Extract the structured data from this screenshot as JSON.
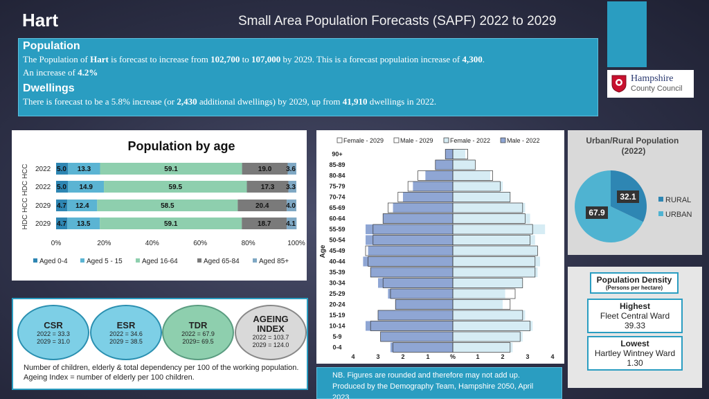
{
  "header": {
    "place": "Hart",
    "title": "Small Area Population Forecasts (SAPF) 2022 to 2029"
  },
  "summary": {
    "population_heading": "Population",
    "pop_t1": "The Population of ",
    "pop_place": "Hart",
    "pop_t2": " is forecast to increase from ",
    "pop_from": "102,700",
    "pop_t3": " to ",
    "pop_to": "107,000",
    "pop_t4": " by 2029. This is a forecast population increase of ",
    "pop_increase": "4,300",
    "pop_t5": ".",
    "pop_line2_a": "An increase of ",
    "pop_percent": "4.2%",
    "dwellings_heading": "Dwellings",
    "dw_t1": "There is forecast to be a 5.8% increase (or ",
    "dw_additional": "2,430",
    "dw_t2": " additional dwellings) by 2029, up from ",
    "dw_from": "41,910",
    "dw_t3": " dwellings in 2022."
  },
  "logo": {
    "line1": "Hampshire",
    "line2": "County Council"
  },
  "age_chart": {
    "title": "Population by age",
    "ylabel": "HDC HCC HDC HCC",
    "legend": [
      "Aged 0-4",
      "Aged 5 - 15",
      "Aged 16-64",
      "Aged 65-84",
      "Aged 85+"
    ],
    "colors": [
      "#2e86b3",
      "#5bb4d3",
      "#8ecfae",
      "#7a7a7a",
      "#7fa8c4"
    ],
    "xticks": [
      "0%",
      "20%",
      "40%",
      "60%",
      "80%",
      "100%"
    ],
    "rows": [
      {
        "label": "2022",
        "values": [
          5.0,
          13.3,
          59.1,
          19.0,
          3.6
        ]
      },
      {
        "label": "2022",
        "values": [
          5.0,
          14.9,
          59.5,
          17.3,
          3.3
        ]
      },
      {
        "label": "2029",
        "values": [
          4.7,
          12.4,
          58.5,
          20.4,
          4.0
        ]
      },
      {
        "label": "2029",
        "values": [
          4.7,
          13.5,
          59.1,
          18.7,
          4.1
        ]
      }
    ]
  },
  "chart_data": [
    {
      "type": "bar",
      "title": "Population by age",
      "categories": [
        "2022",
        "2022",
        "2029",
        "2029"
      ],
      "series": [
        {
          "name": "Aged 0-4",
          "values": [
            5.0,
            5.0,
            4.7,
            4.7
          ]
        },
        {
          "name": "Aged 5 - 15",
          "values": [
            13.3,
            14.9,
            12.4,
            13.5
          ]
        },
        {
          "name": "Aged 16-64",
          "values": [
            59.1,
            59.5,
            58.5,
            59.1
          ]
        },
        {
          "name": "Aged 65-84",
          "values": [
            19.0,
            17.3,
            20.4,
            18.7
          ]
        },
        {
          "name": "Aged 85+",
          "values": [
            3.6,
            3.3,
            4.0,
            4.1
          ]
        }
      ]
    },
    {
      "type": "bar",
      "ylabel": "Age",
      "xticks": [
        "4",
        "3",
        "2",
        "1",
        "%",
        "1",
        "2",
        "3",
        "4"
      ],
      "categories": [
        "0-4",
        "5-9",
        "10-14",
        "15-19",
        "20-24",
        "25-29",
        "30-34",
        "35-39",
        "40-44",
        "45-49",
        "50-54",
        "55-59",
        "60-64",
        "65-69",
        "70-74",
        "75-79",
        "80-84",
        "85-89",
        "90+"
      ],
      "series": [
        {
          "name": "Female - 2029",
          "values": [
            2.3,
            2.7,
            3.1,
            2.8,
            2.3,
            2.5,
            2.8,
            3.3,
            3.3,
            3.4,
            3.1,
            3.2,
            2.9,
            2.8,
            2.3,
            1.9,
            1.6,
            0.9,
            0.6
          ]
        },
        {
          "name": "Male - 2029",
          "values": [
            2.4,
            2.9,
            3.3,
            3.0,
            2.3,
            2.5,
            2.8,
            3.3,
            3.4,
            3.5,
            3.2,
            3.2,
            2.8,
            2.6,
            2.2,
            1.8,
            1.4,
            0.7,
            0.3
          ]
        },
        {
          "name": "Female - 2022",
          "values": [
            2.4,
            2.8,
            3.2,
            2.9,
            2.0,
            2.1,
            2.8,
            3.4,
            3.5,
            3.4,
            3.3,
            3.7,
            3.1,
            2.9,
            2.3,
            2.0,
            1.5,
            0.9,
            0.5
          ]
        },
        {
          "name": "Male - 2022",
          "values": [
            2.5,
            2.9,
            3.5,
            3.0,
            2.3,
            2.6,
            3.0,
            3.3,
            3.6,
            3.4,
            3.5,
            3.5,
            2.8,
            2.4,
            2.0,
            1.6,
            1.1,
            0.7,
            0.3
          ]
        }
      ]
    },
    {
      "type": "pie",
      "title": "Urban/Rural Population (2022)",
      "categories": [
        "RURAL",
        "URBAN"
      ],
      "values": [
        32.1,
        67.9
      ]
    }
  ],
  "pyramid": {
    "legend": [
      "Female - 2029",
      "Male - 2029",
      "Female - 2022",
      "Male - 2022"
    ],
    "ylabel": "Age",
    "xticks": [
      "4",
      "3",
      "2",
      "1",
      "%",
      "1",
      "2",
      "3",
      "4"
    ],
    "colors": {
      "female2029": "#ffffff",
      "male2029": "#ffffff",
      "female2022": "#d6ecf4",
      "male2022": "#8fa6d4"
    }
  },
  "urban_rural": {
    "title": "Urban/Rural Population (2022)",
    "rural_label": "RURAL",
    "urban_label": "URBAN",
    "rural_value": "32.1",
    "urban_value": "67.9",
    "rural_color": "#2e86b3",
    "urban_color": "#4fb3d1"
  },
  "density": {
    "title": "Population Density",
    "subtitle": "(Persons per hectare)",
    "highest_label": "Highest",
    "highest_ward": "Fleet Central Ward",
    "highest_value": "39.33",
    "lowest_label": "Lowest",
    "lowest_ward": "Hartley Wintney Ward",
    "lowest_value": "1.30"
  },
  "ratios": [
    {
      "name": "CSR",
      "l1": "2022 = 33.3",
      "l2": "2029 = 31.0"
    },
    {
      "name": "ESR",
      "l1": "2022 = 34.6",
      "l2": "2029 = 38.5"
    },
    {
      "name": "TDR",
      "l1": "2022 = 67.9",
      "l2": "2029= 69.5"
    },
    {
      "name": "AGEING INDEX",
      "l1": "2022 = 103.7",
      "l2": "2029 = 124.0"
    }
  ],
  "ratios_note": "Number of children, elderly & total dependency per 100 of the working population. Ageing Index = number of elderly per 100 children.",
  "note": {
    "line1": "NB. Figures are rounded and therefore may not add up.",
    "line2": "Produced by the Demography Team, Hampshire 2050, April 2023"
  }
}
